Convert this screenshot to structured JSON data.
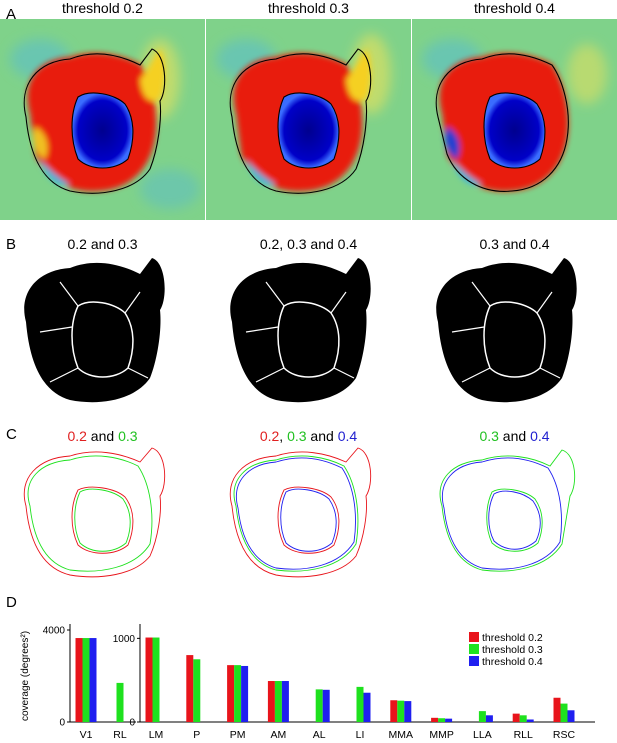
{
  "panels": {
    "a": {
      "letter": "A",
      "titles": [
        "threshold 0.2",
        "threshold 0.3",
        "threshold 0.4"
      ]
    },
    "b": {
      "letter": "B",
      "titles": [
        "0.2 and 0.3",
        "0.2, 0.3 and 0.4",
        "0.3 and 0.4"
      ]
    },
    "c": {
      "letter": "C",
      "titles": [
        [
          {
            "text": "0.2",
            "color": "red"
          },
          {
            "text": " and ",
            "color": "black"
          },
          {
            "text": "0.3",
            "color": "green"
          }
        ],
        [
          {
            "text": "0.2",
            "color": "red"
          },
          {
            "text": ", ",
            "color": "black"
          },
          {
            "text": "0.3",
            "color": "green"
          },
          {
            "text": " and ",
            "color": "black"
          },
          {
            "text": "0.4",
            "color": "blue"
          }
        ],
        [
          {
            "text": "0.3",
            "color": "green"
          },
          {
            "text": " and ",
            "color": "black"
          },
          {
            "text": "0.4",
            "color": "blue"
          }
        ]
      ]
    },
    "d": {
      "letter": "D"
    }
  },
  "colors": {
    "red": "#e8141b",
    "green": "#1ee11e",
    "blue": "#1f1ff0",
    "heat_bg": "#7fd28a"
  },
  "chart_data": {
    "type": "bar",
    "ylabel": "coverage (degrees²)",
    "series": [
      {
        "name": "threshold 0.2",
        "color": "#e8141b"
      },
      {
        "name": "threshold 0.3",
        "color": "#1ee11e"
      },
      {
        "name": "threshold 0.4",
        "color": "#1f1ff0"
      }
    ],
    "legend_position": "top-right",
    "groups": [
      {
        "ylim": [
          0,
          4000
        ],
        "yticks": [
          0,
          4000
        ],
        "categories": [
          "V1",
          "RL"
        ],
        "values": [
          [
            3650,
            3650,
            3650
          ],
          [
            null,
            1700,
            null
          ]
        ]
      },
      {
        "ylim": [
          0,
          1100
        ],
        "yticks": [
          0,
          1000
        ],
        "categories": [
          "LM",
          "P",
          "PM",
          "AM",
          "AL",
          "LI",
          "MMA",
          "MMP",
          "LLA",
          "RLL",
          "RSC"
        ],
        "values": [
          [
            1010,
            1010,
            null
          ],
          [
            800,
            750,
            null
          ],
          [
            680,
            680,
            670
          ],
          [
            490,
            490,
            490
          ],
          [
            null,
            390,
            385
          ],
          [
            null,
            420,
            350
          ],
          [
            260,
            255,
            250
          ],
          [
            50,
            45,
            40
          ],
          [
            null,
            130,
            80
          ],
          [
            100,
            80,
            30
          ],
          [
            290,
            220,
            140
          ]
        ]
      }
    ]
  }
}
